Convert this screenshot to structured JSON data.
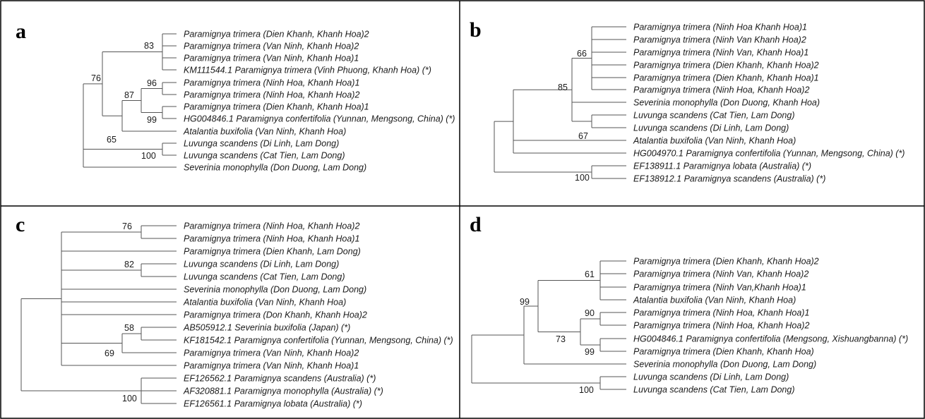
{
  "panels": [
    {
      "letter": "a",
      "taxa": [
        "Paramignya trimera (Dien Khanh, Khanh Hoa)2",
        "Paramignya trimera (Van Ninh, Khanh Hoa)2",
        "Paramignya trimera (Van Ninh, Khanh Hoa)1",
        "KM111544.1 Paramignya trimera (Vinh Phuong, Khanh Hoa) (*)",
        "Paramignya trimera (Ninh Hoa, Khanh Hoa)1",
        "Paramignya trimera (Ninh Hoa, Khanh Hoa)2",
        "Paramignya trimera (Dien Khanh, Khanh Hoa)1",
        "HG004846.1 Paramignya confertifolia (Yunnan, Mengsong, China) (*)",
        "Atalantia buxifolia (Van Ninh, Khanh Hoa)",
        "Luvunga scandens (Di Linh, Lam Dong)",
        "Luvunga scandens (Cat Tien, Lam Dong)",
        "Severinia monophylla (Don Duong, Lam Dong)"
      ],
      "supports": [
        "83",
        "96",
        "87",
        "99",
        "76",
        "65",
        "100"
      ]
    },
    {
      "letter": "b",
      "taxa": [
        "Paramignya trimera (Ninh Hoa Khanh Hoa)1",
        "Paramignya trimera (Ninh Van Khanh Hoa)2",
        "Paramignya trimera (Ninh Van, Khanh Hoa)1",
        "Paramignya trimera (Dien Khanh, Khanh Hoa)2",
        "Paramignya trimera (Dien Khanh, Khanh Hoa)1",
        "Paramignya trimera (Ninh Hoa, Khanh Hoa)2",
        "Severinia monophylla (Don Duong, Khanh Hoa)",
        "Luvunga scandens (Cat Tien, Lam Dong)",
        "Luvunga scandens (Di Linh, Lam Dong)",
        "Atalantia buxifolia (Van Ninh, Khanh Hoa)",
        "HG004970.1 Paramignya confertifolia (Yunnan, Mengsong, China) (*)",
        "EF138911.1 Paramignya lobata (Australia) (*)",
        "EF138912.1 Paramignya scandens (Australia) (*)"
      ],
      "supports": [
        "66",
        "85",
        "67",
        "100"
      ]
    },
    {
      "letter": "c",
      "taxa": [
        "Paramignya trimera (Ninh Hoa, Khanh Hoa)2",
        "Paramignya trimera (Ninh Hoa, Khanh Hoa)1",
        "Paramignya trimera (Dien Khanh, Lam Dong)",
        "Luvunga scandens (Di Linh, Lam Dong)",
        "Luvunga scandens (Cat Tien, Lam Dong)",
        "Severinia monophylla (Don Duong, Lam Dong)",
        "Atalantia buxifolia (Van Ninh, Khanh Hoa)",
        "Paramignya trimera (Don Khanh, Khanh Hoa)2",
        "AB505912.1 Severinia buxifolia (Japan) (*)",
        "KF181542.1 Paramignya confertifolia (Yunnan, Mengsong, China) (*)",
        "Paramignya trimera (Van Ninh, Khanh Hoa)2",
        "Paramignya trimera (Van Ninh, Khanh Hoa)1",
        "EF126562.1 Paramignya scandens (Australia) (*)",
        "AF320881.1 Paramignya monophylla (Australia) (*)",
        "EF126561.1 Paramignya lobata (Australia) (*)"
      ],
      "supports": [
        "76",
        "82",
        "58",
        "69",
        "100"
      ]
    },
    {
      "letter": "d",
      "taxa": [
        "Paramignya trimera (Dien Khanh, Khanh Hoa)2",
        "Paramignya trimera (Ninh Van, Khanh Hoa)2",
        "Paramignya trimera (Ninh Van,Khanh Hoa)1",
        "Atalantia buxifolia (Van Ninh, Khanh Hoa)",
        "Paramignya trimera (Ninh Hoa, Khanh Hoa)1",
        "Paramignya trimera (Ninh Hoa, Khanh Hoa)2",
        "HG004846.1 Paramignya confertifolia (Mengsong, Xishuangbanna) (*)",
        "Paramignya trimera (Dien Khanh, Khanh Hoa)",
        "Severinia monophylla (Don Duong, Lam Dong)",
        "Luvunga scandens (Di Linh, Lam Dong)",
        "Luvunga scandens (Cat Tien, Lam Dong)"
      ],
      "supports": [
        "61",
        "99",
        "90",
        "73",
        "99",
        "100"
      ]
    }
  ]
}
